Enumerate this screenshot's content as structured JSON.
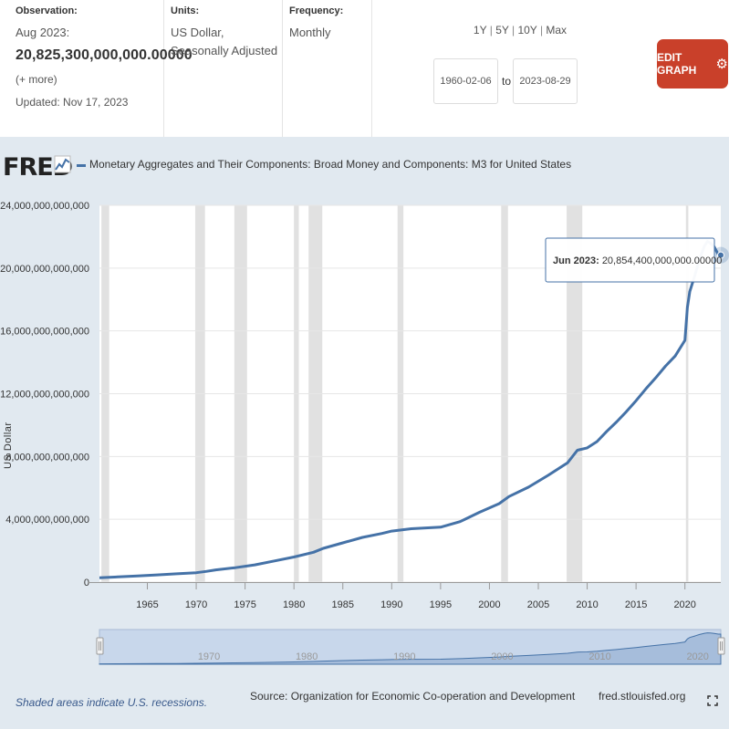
{
  "header": {
    "observation_label": "Observation:",
    "observation_date": "Aug 2023:",
    "observation_value": "20,825,300,000,000.00000",
    "more_label": "(+ more)",
    "updated": "Updated: Nov 17, 2023",
    "units_label": "Units:",
    "units_line1": "US Dollar,",
    "units_line2": "Seasonally Adjusted",
    "frequency_label": "Frequency:",
    "frequency_value": "Monthly",
    "range_options": [
      "1Y",
      "5Y",
      "10Y",
      "Max"
    ],
    "start_date": "1960-02-06",
    "to_label": "to",
    "end_date": "2023-08-29",
    "edit_button": "EDIT GRAPH",
    "colors": {
      "edit_button": "#c9402a"
    }
  },
  "chart": {
    "logo": "FRED",
    "legend_label": "Monetary Aggregates and Their Components: Broad Money and Components: M3 for United States",
    "tooltip_date": "Jun 2023:",
    "tooltip_value": "20,854,400,000,000.00000",
    "footer_note": "Shaded areas indicate U.S. recessions.",
    "source": "Source: Organization for Economic Co-operation and Development",
    "site": "fred.stlouisfed.org",
    "colors": {
      "series": "#4572a7",
      "background": "#e1e9f0",
      "recession": "#e1e1e1"
    }
  },
  "chart_data": {
    "type": "line",
    "title": "Monetary Aggregates and Their Components: Broad Money and Components: M3 for United States",
    "xlabel": "",
    "ylabel": "US Dollar",
    "xlim": [
      1960.1,
      2023.67
    ],
    "ylim": [
      0,
      24000000000000
    ],
    "y_ticks": [
      0,
      4000000000000,
      8000000000000,
      12000000000000,
      16000000000000,
      20000000000000,
      24000000000000
    ],
    "y_tick_labels": [
      "0",
      "4,000,000,000,000",
      "8,000,000,000,000",
      "12,000,000,000,000",
      "16,000,000,000,000",
      "20,000,000,000,000",
      "24,000,000,000,000"
    ],
    "x_ticks": [
      1965,
      1970,
      1975,
      1980,
      1985,
      1990,
      1995,
      2000,
      2005,
      2010,
      2015,
      2020
    ],
    "x_tick_labels": [
      "1965",
      "1970",
      "1975",
      "1980",
      "1985",
      "1990",
      "1995",
      "2000",
      "2005",
      "2010",
      "2015",
      "2020"
    ],
    "navigator_tick_labels": [
      "1970",
      "1980",
      "1990",
      "2000",
      "2010",
      "2020"
    ],
    "recessions": [
      [
        1960.3,
        1961.1
      ],
      [
        1969.9,
        1970.9
      ],
      [
        1973.9,
        1975.2
      ],
      [
        1980.0,
        1980.5
      ],
      [
        1981.5,
        1982.9
      ],
      [
        1990.6,
        1991.2
      ],
      [
        2001.2,
        2001.9
      ],
      [
        2007.9,
        2009.5
      ],
      [
        2020.1,
        2020.35
      ]
    ],
    "series": [
      {
        "name": "M3 for United States",
        "x": [
          1960.1,
          1962,
          1964,
          1966,
          1968,
          1970,
          1971,
          1972,
          1974,
          1976,
          1978,
          1980,
          1982,
          1983,
          1985,
          1987,
          1989,
          1990,
          1992,
          1995,
          1997,
          1999,
          2001,
          2002,
          2004,
          2006,
          2008,
          2009,
          2010,
          2011,
          2012,
          2013,
          2014,
          2015,
          2016,
          2017,
          2018,
          2019,
          2020.0,
          2020.25,
          2020.5,
          2021,
          2021.5,
          2022,
          2022.3,
          2022.6,
          2023.0,
          2023.42,
          2023.67
        ],
        "values": [
          280000000000,
          330000000000,
          390000000000,
          460000000000,
          530000000000,
          600000000000,
          680000000000,
          780000000000,
          920000000000,
          1100000000000,
          1350000000000,
          1600000000000,
          1900000000000,
          2150000000000,
          2500000000000,
          2850000000000,
          3100000000000,
          3250000000000,
          3400000000000,
          3500000000000,
          3850000000000,
          4450000000000,
          5000000000000,
          5450000000000,
          6050000000000,
          6800000000000,
          7600000000000,
          8400000000000,
          8550000000000,
          8950000000000,
          9600000000000,
          10200000000000,
          10850000000000,
          11550000000000,
          12300000000000,
          13000000000000,
          13750000000000,
          14400000000000,
          15400000000000,
          17500000000000,
          18500000000000,
          19500000000000,
          20600000000000,
          21400000000000,
          21700000000000,
          21600000000000,
          21350000000000,
          20854400000000,
          20825300000000
        ]
      }
    ],
    "tooltip": {
      "x": 2023.42,
      "y": 20854400000000,
      "label": "Jun 2023: 20,854,400,000,000.00000"
    },
    "last_observation": {
      "x": 2023.67,
      "y": 20825300000000
    }
  }
}
